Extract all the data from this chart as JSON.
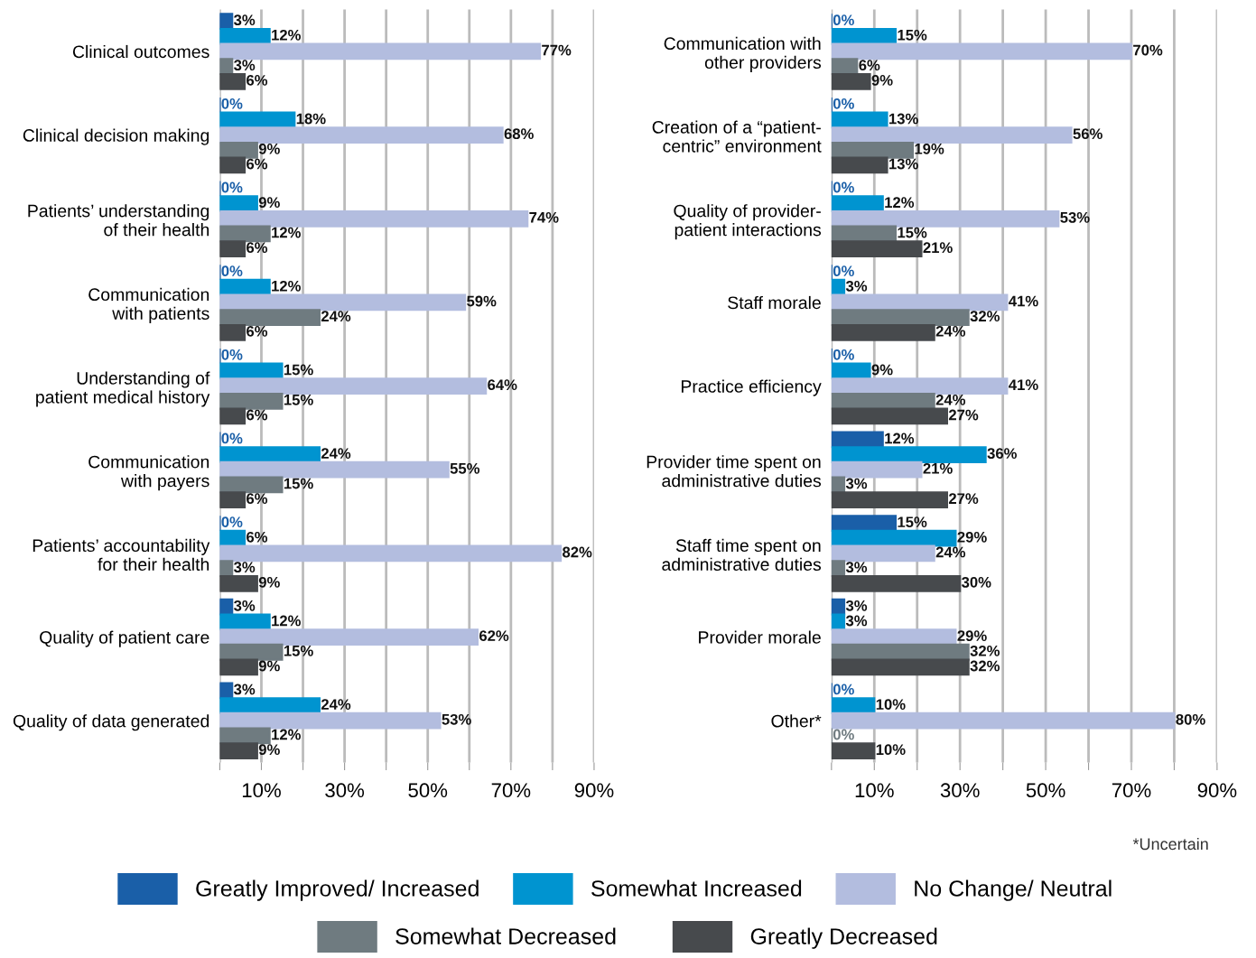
{
  "chart_data": [
    {
      "type": "bar",
      "orientation": "horizontal",
      "categories": [
        "Clinical outcomes",
        "Clinical decision making",
        "Patients’ understanding\nof their health",
        "Communication\nwith patients",
        "Understanding of\npatient medical history",
        "Communication\nwith payers",
        "Patients’ accountability\nfor their health",
        "Quality of patient care",
        "Quality of data generated"
      ],
      "series": [
        {
          "name": "Greatly Improved/ Increased",
          "color": "#1a5fa8",
          "values": [
            3,
            0,
            0,
            0,
            0,
            0,
            0,
            3,
            3
          ],
          "value_labels": [
            "3%",
            "0%",
            "0%",
            "0%",
            "0%",
            "0%",
            "0%",
            "3%",
            "3%"
          ]
        },
        {
          "name": "Somewhat Increased",
          "color": "#0094d0",
          "values": [
            12,
            18,
            9,
            12,
            15,
            24,
            6,
            12,
            24
          ],
          "value_labels": [
            "12%",
            "18%",
            "9%",
            "12%",
            "15%",
            "24%",
            "6%",
            "12%",
            "24%"
          ]
        },
        {
          "name": "No Change/ Neutral",
          "color": "#b3bddf",
          "values": [
            77,
            68,
            74,
            59,
            64,
            55,
            82,
            62,
            53
          ],
          "value_labels": [
            "77%",
            "68%",
            "74%",
            "59%",
            "64%",
            "55%",
            "82%",
            "62%",
            "53%"
          ]
        },
        {
          "name": "Somewhat Decreased",
          "color": "#6f7b80",
          "values": [
            3,
            9,
            12,
            24,
            15,
            15,
            3,
            15,
            12
          ],
          "value_labels": [
            "3%",
            "9%",
            "12%",
            "24%",
            "15%",
            "15%",
            "3%",
            "15%",
            "12%"
          ]
        },
        {
          "name": "Greatly Decreased",
          "color": "#474a4d",
          "values": [
            6,
            6,
            6,
            6,
            6,
            6,
            9,
            9,
            9
          ],
          "value_labels": [
            "6%",
            "6%",
            "6%",
            "6%",
            "6%",
            "6%",
            "9%",
            "9%",
            "9%"
          ]
        }
      ],
      "xlim": [
        0,
        90
      ],
      "xticks": [
        {
          "value": 0,
          "label": null
        },
        {
          "value": 10,
          "label": "10%"
        },
        {
          "value": 20,
          "label": null
        },
        {
          "value": 30,
          "label": "30%"
        },
        {
          "value": 40,
          "label": null
        },
        {
          "value": 50,
          "label": "50%"
        },
        {
          "value": 60,
          "label": null
        },
        {
          "value": 70,
          "label": "70%"
        },
        {
          "value": 80,
          "label": null
        },
        {
          "value": 90,
          "label": "90%"
        }
      ],
      "grid": "x",
      "legend": "bottom"
    },
    {
      "type": "bar",
      "orientation": "horizontal",
      "categories": [
        "Communication with\nother providers",
        "Creation of a “patient-\ncentric” environment",
        "Quality of provider-\npatient interactions",
        "Staff morale",
        "Practice efficiency",
        "Provider time spent on\nadministrative duties",
        "Staff time spent on\nadministrative duties",
        "Provider morale",
        "Other*"
      ],
      "series": [
        {
          "name": "Greatly Improved/ Increased",
          "color": "#1a5fa8",
          "values": [
            0,
            0,
            0,
            0,
            0,
            12,
            15,
            3,
            0
          ],
          "value_labels": [
            "0%",
            "0%",
            "0%",
            "0%",
            "0%",
            "12%",
            "15%",
            "3%",
            "0%"
          ]
        },
        {
          "name": "Somewhat Increased",
          "color": "#0094d0",
          "values": [
            15,
            13,
            12,
            3,
            9,
            36,
            29,
            3,
            10
          ],
          "value_labels": [
            "15%",
            "13%",
            "12%",
            "3%",
            "9%",
            "36%",
            "29%",
            "3%",
            "10%"
          ]
        },
        {
          "name": "No Change/ Neutral",
          "color": "#b3bddf",
          "values": [
            70,
            56,
            53,
            41,
            41,
            21,
            24,
            29,
            80
          ],
          "value_labels": [
            "70%",
            "56%",
            "53%",
            "41%",
            "41%",
            "21%",
            "24%",
            "29%",
            "80%"
          ]
        },
        {
          "name": "Somewhat Decreased",
          "color": "#6f7b80",
          "values": [
            6,
            19,
            15,
            32,
            24,
            3,
            3,
            32,
            0
          ],
          "value_labels": [
            "6%",
            "19%",
            "15%",
            "32%",
            "24%",
            "3%",
            "3%",
            "32%",
            "0%"
          ]
        },
        {
          "name": "Greatly Decreased",
          "color": "#474a4d",
          "values": [
            9,
            13,
            21,
            24,
            27,
            27,
            30,
            32,
            10
          ],
          "value_labels": [
            "9%",
            "13%",
            "21%",
            "24%",
            "27%",
            "27%",
            "30%",
            "32%",
            "10%"
          ]
        }
      ],
      "xlim": [
        0,
        90
      ],
      "xticks": [
        {
          "value": 0,
          "label": null
        },
        {
          "value": 10,
          "label": "10%"
        },
        {
          "value": 20,
          "label": null
        },
        {
          "value": 30,
          "label": "30%"
        },
        {
          "value": 40,
          "label": null
        },
        {
          "value": 50,
          "label": "50%"
        },
        {
          "value": 60,
          "label": null
        },
        {
          "value": 70,
          "label": "70%"
        },
        {
          "value": 80,
          "label": null
        },
        {
          "value": 90,
          "label": "90%"
        }
      ],
      "grid": "x",
      "legend": "bottom",
      "annotations": [
        "*Uncertain"
      ]
    }
  ]
}
